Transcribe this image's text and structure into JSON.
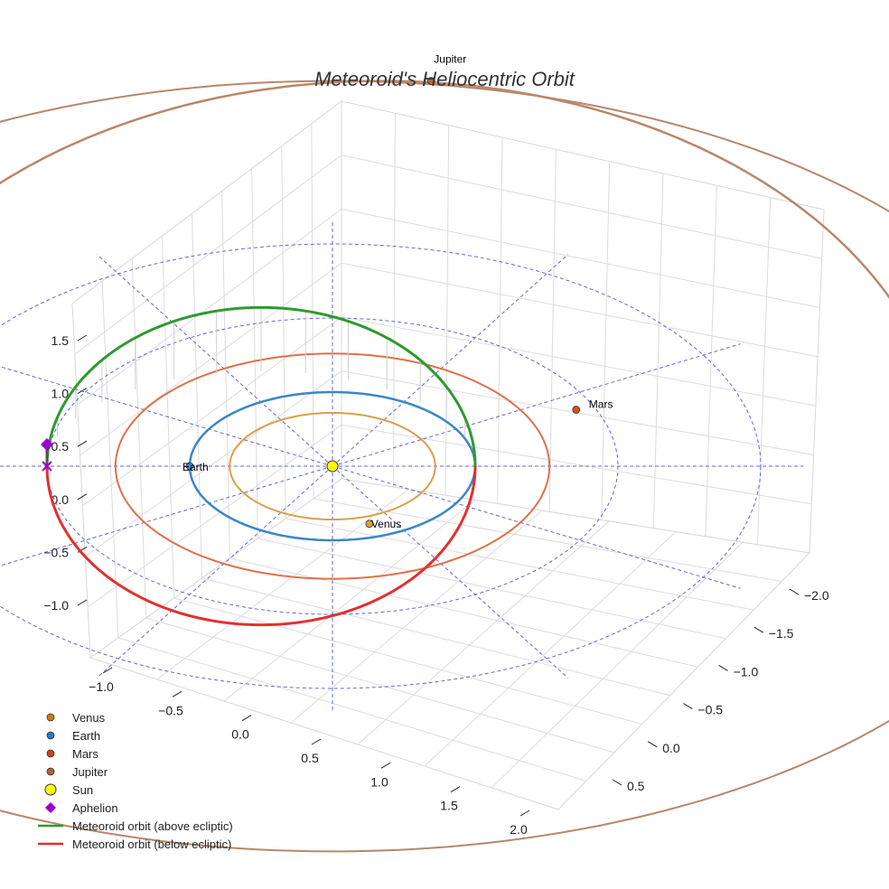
{
  "chart_data": {
    "type": "scatter",
    "subtype": "3d-orbit",
    "title": "Meteoroid's Heliocentric Orbit",
    "xlabel": "",
    "ylabel": "",
    "zlabel": "",
    "x_ticks": [
      "−1.0",
      "−0.5",
      "0.0",
      "0.5",
      "1.0",
      "1.5",
      "2.0"
    ],
    "y_ticks": [
      "−2.0",
      "−1.5",
      "−1.0",
      "−0.5",
      "0.0",
      "0.5"
    ],
    "z_ticks": [
      "−1.0",
      "−0.5",
      "0.0",
      "0.5",
      "1.0",
      "1.5"
    ],
    "xlim": [
      -1.2,
      2.2
    ],
    "ylim": [
      -2.3,
      0.8
    ],
    "zlim": [
      -1.5,
      1.9
    ],
    "grid": true,
    "legend_position": "bottom-left",
    "colors": {
      "Venus": "#d8a04a",
      "Earth": "#3a86c8",
      "Mars": "#e0704a",
      "Jupiter": "#b8876a",
      "Sun": "#ffff00",
      "Aphelion": "#9a00cc",
      "above": "#2e9a2e",
      "below": "#e23030",
      "reference": "#5555dd"
    },
    "planets": [
      {
        "name": "Venus",
        "orbit_radius_au": 0.72,
        "label": "Venus"
      },
      {
        "name": "Earth",
        "orbit_radius_au": 1.0,
        "label": "Earth"
      },
      {
        "name": "Mars",
        "orbit_radius_au": 1.52,
        "label": "Mars"
      },
      {
        "name": "Jupiter",
        "orbit_radius_au": 5.2,
        "label": "Jupiter"
      }
    ],
    "meteoroid": {
      "approx_perihelion_au": 1.0,
      "approx_aphelion_au": 2.0,
      "approx_inclination_deg": 25
    },
    "series": [
      {
        "name": "Venus",
        "marker": "circle"
      },
      {
        "name": "Earth",
        "marker": "circle"
      },
      {
        "name": "Mars",
        "marker": "circle"
      },
      {
        "name": "Jupiter",
        "marker": "circle"
      },
      {
        "name": "Sun",
        "marker": "circle"
      },
      {
        "name": "Aphelion",
        "marker": "diamond"
      },
      {
        "name": "Meteoroid orbit (above ecliptic)",
        "marker": "line"
      },
      {
        "name": "Meteoroid orbit (below ecliptic)",
        "marker": "line"
      }
    ]
  },
  "legend": [
    {
      "label": "Venus",
      "symbol": "dot",
      "color": "#d07a1e"
    },
    {
      "label": "Earth",
      "symbol": "dot",
      "color": "#2a7ab8"
    },
    {
      "label": "Mars",
      "symbol": "dot",
      "color": "#c44a12"
    },
    {
      "label": "Jupiter",
      "symbol": "dot",
      "color": "#a8643c"
    },
    {
      "label": "Sun",
      "symbol": "sun",
      "color": "#ffff00"
    },
    {
      "label": "Aphelion",
      "symbol": "diamond",
      "color": "#9a00cc"
    },
    {
      "label": "Meteoroid orbit (above ecliptic)",
      "symbol": "line",
      "color": "#2e9a2e"
    },
    {
      "label": "Meteoroid orbit (below ecliptic)",
      "symbol": "line",
      "color": "#e23030"
    }
  ]
}
